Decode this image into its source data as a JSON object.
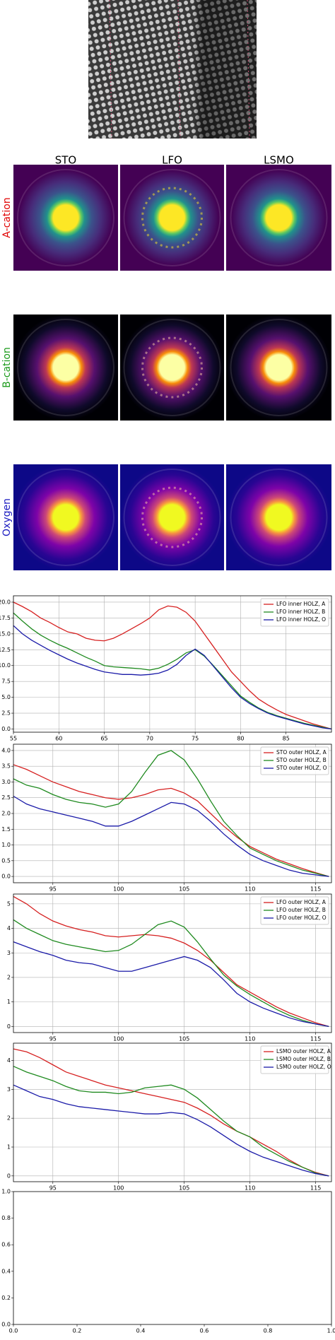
{
  "header": {
    "columns": [
      "STO",
      "LFO",
      "LSMO"
    ],
    "rows": [
      "A-cation",
      "B-cation",
      "Oxygen"
    ]
  },
  "chart_data": [
    {
      "type": "line",
      "xlim": [
        55,
        90
      ],
      "ylim": [
        -0.5,
        21
      ],
      "xticks": [
        55,
        60,
        65,
        70,
        75,
        80,
        85
      ],
      "yticks": [
        {
          "value": 0,
          "label": "0.0"
        },
        2.5,
        {
          "value": 5,
          "label": "5.0"
        },
        7.5,
        {
          "value": 10,
          "label": "10.0"
        },
        12.5,
        {
          "value": 15,
          "label": "15.0"
        },
        17.5,
        {
          "value": 20,
          "label": "20.0"
        }
      ],
      "grid": true,
      "legend": "upper right",
      "x": [
        55,
        56,
        57,
        58,
        59,
        60,
        61,
        62,
        63,
        64,
        65,
        66,
        67,
        68,
        69,
        70,
        71,
        72,
        73,
        74,
        75,
        76,
        77,
        78,
        79,
        80,
        81,
        82,
        83,
        84,
        85,
        86,
        87,
        88,
        89,
        90
      ],
      "series": [
        {
          "name": "LFO inner HOLZ, A",
          "color": "#d62020",
          "values": [
            20,
            19.3,
            18.5,
            17.5,
            16.8,
            16,
            15.3,
            15,
            14.3,
            14,
            13.9,
            14.3,
            15,
            15.8,
            16.6,
            17.5,
            18.8,
            19.4,
            19.2,
            18.4,
            17,
            15,
            13,
            11,
            9,
            7.5,
            6,
            4.7,
            3.8,
            3,
            2.3,
            1.8,
            1.3,
            0.8,
            0.4,
            0
          ]
        },
        {
          "name": "LFO inner HOLZ, B",
          "color": "#1f8a1f",
          "values": [
            18.3,
            17,
            15.8,
            14.8,
            14,
            13.3,
            12.7,
            12,
            11.3,
            10.7,
            10,
            9.8,
            9.7,
            9.6,
            9.5,
            9.3,
            9.6,
            10.2,
            11,
            12,
            12.5,
            11.5,
            10,
            8.4,
            6.8,
            5.2,
            4.2,
            3.3,
            2.6,
            2.1,
            1.7,
            1.3,
            0.9,
            0.6,
            0.3,
            0
          ]
        },
        {
          "name": "LFO inner HOLZ, O",
          "color": "#1a1aa8",
          "values": [
            16.3,
            15,
            14,
            13.2,
            12.4,
            11.7,
            11,
            10.4,
            9.9,
            9.4,
            9,
            8.8,
            8.6,
            8.6,
            8.5,
            8.6,
            8.8,
            9.3,
            10.2,
            11.6,
            12.6,
            11.6,
            9.9,
            8.2,
            6.5,
            5,
            4,
            3.2,
            2.5,
            2,
            1.6,
            1.2,
            0.8,
            0.5,
            0.2,
            0
          ]
        }
      ]
    },
    {
      "type": "line",
      "xlim": [
        92,
        116.2
      ],
      "ylim": [
        -0.2,
        4.2
      ],
      "xticks": [
        95,
        100,
        105,
        110,
        115
      ],
      "yticks": [
        {
          "value": 0,
          "label": "0.0"
        },
        0.5,
        {
          "value": 1,
          "label": "1.0"
        },
        1.5,
        {
          "value": 2,
          "label": "2.0"
        },
        2.5,
        {
          "value": 3,
          "label": "3.0"
        },
        3.5,
        {
          "value": 4,
          "label": "4.0"
        }
      ],
      "grid": true,
      "legend": "upper right",
      "x": [
        92,
        93,
        94,
        95,
        96,
        97,
        98,
        99,
        100,
        101,
        102,
        103,
        104,
        105,
        106,
        107,
        108,
        109,
        110,
        111,
        112,
        113,
        114,
        115,
        116
      ],
      "series": [
        {
          "name": "STO outer HOLZ, A",
          "color": "#d62020",
          "values": [
            3.55,
            3.4,
            3.2,
            3.0,
            2.85,
            2.7,
            2.6,
            2.5,
            2.45,
            2.5,
            2.6,
            2.75,
            2.8,
            2.65,
            2.4,
            2.0,
            1.6,
            1.25,
            0.95,
            0.75,
            0.55,
            0.4,
            0.25,
            0.12,
            0
          ]
        },
        {
          "name": "STO outer HOLZ, B",
          "color": "#1f8a1f",
          "values": [
            3.1,
            2.9,
            2.8,
            2.6,
            2.45,
            2.35,
            2.3,
            2.2,
            2.3,
            2.7,
            3.3,
            3.85,
            4.0,
            3.7,
            3.1,
            2.4,
            1.75,
            1.3,
            0.9,
            0.7,
            0.5,
            0.35,
            0.2,
            0.1,
            0
          ]
        },
        {
          "name": "STO outer HOLZ, O",
          "color": "#1a1aa8",
          "values": [
            2.55,
            2.3,
            2.15,
            2.05,
            1.95,
            1.85,
            1.75,
            1.6,
            1.6,
            1.75,
            1.95,
            2.15,
            2.35,
            2.3,
            2.1,
            1.75,
            1.35,
            1.0,
            0.7,
            0.5,
            0.35,
            0.2,
            0.1,
            0.05,
            0
          ]
        }
      ]
    },
    {
      "type": "line",
      "xlim": [
        92,
        116.2
      ],
      "ylim": [
        -0.25,
        5.4
      ],
      "xticks": [
        95,
        100,
        105,
        110,
        115
      ],
      "yticks": [
        0,
        1,
        2,
        3,
        4,
        5
      ],
      "grid": true,
      "legend": "upper right",
      "x": [
        92,
        93,
        94,
        95,
        96,
        97,
        98,
        99,
        100,
        101,
        102,
        103,
        104,
        105,
        106,
        107,
        108,
        109,
        110,
        111,
        112,
        113,
        114,
        115,
        116
      ],
      "series": [
        {
          "name": "LFO outer HOLZ, A",
          "color": "#d62020",
          "values": [
            5.3,
            5.0,
            4.6,
            4.3,
            4.1,
            3.95,
            3.85,
            3.7,
            3.65,
            3.7,
            3.75,
            3.7,
            3.6,
            3.4,
            3.1,
            2.7,
            2.2,
            1.7,
            1.4,
            1.1,
            0.8,
            0.55,
            0.35,
            0.15,
            0
          ]
        },
        {
          "name": "LFO outer HOLZ, B",
          "color": "#1f8a1f",
          "values": [
            4.35,
            4.0,
            3.75,
            3.5,
            3.35,
            3.25,
            3.15,
            3.05,
            3.1,
            3.35,
            3.75,
            4.15,
            4.3,
            4.05,
            3.45,
            2.75,
            2.1,
            1.65,
            1.3,
            1.0,
            0.7,
            0.45,
            0.25,
            0.1,
            0
          ]
        },
        {
          "name": "LFO outer HOLZ, O",
          "color": "#1a1aa8",
          "values": [
            3.45,
            3.25,
            3.05,
            2.9,
            2.7,
            2.6,
            2.55,
            2.4,
            2.25,
            2.25,
            2.4,
            2.55,
            2.7,
            2.85,
            2.7,
            2.4,
            1.9,
            1.35,
            1.0,
            0.75,
            0.55,
            0.35,
            0.2,
            0.1,
            0
          ]
        }
      ]
    },
    {
      "type": "line",
      "xlim": [
        92,
        116.2
      ],
      "ylim": [
        -0.2,
        4.6
      ],
      "xticks": [
        95,
        100,
        105,
        110,
        115
      ],
      "yticks": [
        0,
        1,
        2,
        3,
        4
      ],
      "grid": true,
      "legend": "upper right",
      "x": [
        92,
        93,
        94,
        95,
        96,
        97,
        98,
        99,
        100,
        101,
        102,
        103,
        104,
        105,
        106,
        107,
        108,
        109,
        110,
        111,
        112,
        113,
        114,
        115,
        116
      ],
      "series": [
        {
          "name": "LSMO outer HOLZ, A",
          "color": "#d62020",
          "values": [
            4.4,
            4.3,
            4.1,
            3.85,
            3.6,
            3.45,
            3.3,
            3.15,
            3.05,
            2.95,
            2.85,
            2.75,
            2.65,
            2.55,
            2.35,
            2.1,
            1.8,
            1.55,
            1.35,
            1.1,
            0.85,
            0.55,
            0.3,
            0.12,
            0
          ]
        },
        {
          "name": "LSMO outer HOLZ, B",
          "color": "#1f8a1f",
          "values": [
            3.8,
            3.6,
            3.45,
            3.3,
            3.1,
            2.95,
            2.9,
            2.9,
            2.85,
            2.9,
            3.05,
            3.1,
            3.15,
            3.0,
            2.7,
            2.3,
            1.9,
            1.55,
            1.35,
            1.0,
            0.75,
            0.5,
            0.3,
            0.1,
            0
          ]
        },
        {
          "name": "LSMO outer HOLZ, O",
          "color": "#1a1aa8",
          "values": [
            3.15,
            2.95,
            2.75,
            2.65,
            2.5,
            2.4,
            2.35,
            2.3,
            2.25,
            2.2,
            2.15,
            2.15,
            2.2,
            2.15,
            1.95,
            1.7,
            1.4,
            1.1,
            0.85,
            0.65,
            0.5,
            0.35,
            0.2,
            0.08,
            0
          ]
        }
      ]
    },
    {
      "type": "line",
      "xlim": [
        0,
        1
      ],
      "ylim": [
        0,
        1
      ],
      "xticks": [
        {
          "value": 0,
          "label": "0.0"
        },
        0.2,
        0.4,
        0.6,
        0.8,
        {
          "value": 1,
          "label": "1.0"
        }
      ],
      "yticks": [
        {
          "value": 0,
          "label": "0.0"
        },
        0.2,
        0.4,
        0.6,
        0.8,
        {
          "value": 1,
          "label": "1.0"
        }
      ],
      "grid": false
    }
  ]
}
